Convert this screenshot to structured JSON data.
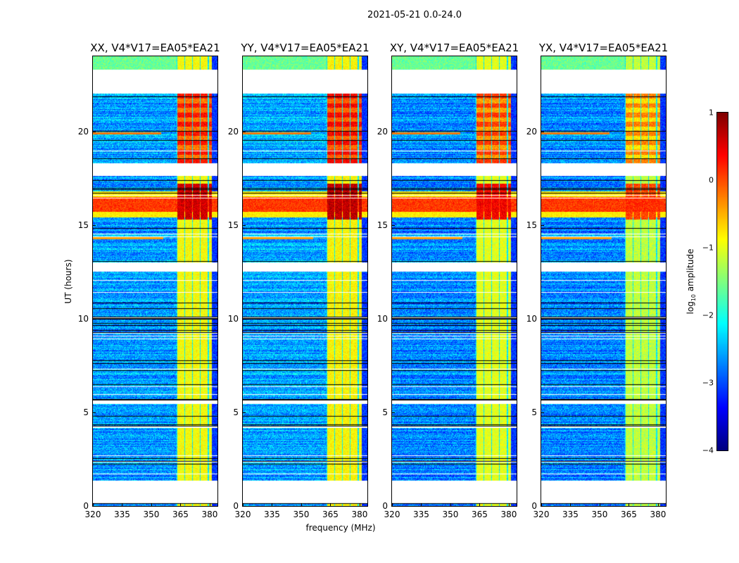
{
  "figure": {
    "suptitle": "2021-05-21 0.0-24.0"
  },
  "chart_data": {
    "type": "heatmap",
    "title": "2021-05-21 0.0-24.0",
    "xlabel": "frequency (MHz)",
    "ylabel": "UT (hours)",
    "xlim": [
      320,
      384
    ],
    "ylim": [
      0,
      24
    ],
    "xticks": [
      "320",
      "335",
      "350",
      "365",
      "380"
    ],
    "xtick_values": [
      320,
      335,
      350,
      365,
      380
    ],
    "yticks": [
      "0",
      "5",
      "10",
      "15",
      "20"
    ],
    "ytick_values": [
      0,
      5,
      10,
      15,
      20
    ],
    "panels": [
      {
        "title": "XX, V4*V17=EA05*EA21",
        "rfi_level": 0.0,
        "base_level": -2.6
      },
      {
        "title": "YY, V4*V17=EA05*EA21",
        "rfi_level": 0.1,
        "base_level": -2.55
      },
      {
        "title": "XY, V4*V17=EA05*EA21",
        "rfi_level": -0.2,
        "base_level": -2.7
      },
      {
        "title": "YX, V4*V17=EA05*EA21",
        "rfi_level": -0.55,
        "base_level": -2.7
      }
    ],
    "flagged_hours": [
      [
        0.15,
        1.35
      ],
      [
        5.45,
        5.65
      ],
      [
        12.5,
        13.0
      ],
      [
        17.6,
        18.3
      ],
      [
        22.1,
        23.3
      ]
    ],
    "rfi_band_mhz": [
      363,
      381
    ],
    "strong_rfi_hours": [
      [
        15.3,
        17.2
      ],
      [
        18.3,
        22.1
      ]
    ],
    "broadband_burst_hours": [
      15.7,
      16.5
    ],
    "colorbar": {
      "label_main": "log",
      "label_sub": "10",
      "label_rest": " amplitude",
      "range": [
        -4,
        1
      ],
      "colormap": "jet",
      "ticks": [
        "1",
        "0",
        "−1",
        "−2",
        "−3",
        "−4"
      ],
      "tick_values": [
        1,
        0,
        -1,
        -2,
        -3,
        -4
      ]
    }
  }
}
